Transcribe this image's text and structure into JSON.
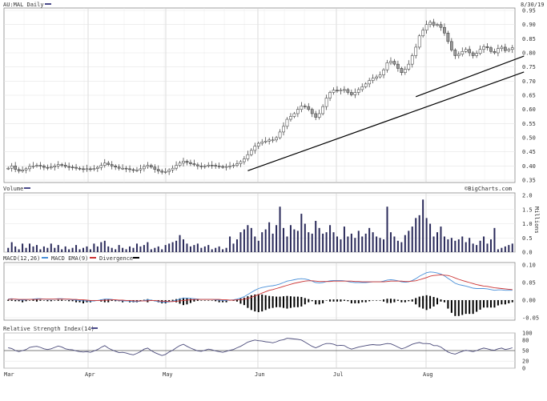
{
  "chart_data": [
    {
      "type": "candlestick",
      "title": "AU:MAL Daily",
      "date_label": "8/30/19",
      "ylim": [
        0.35,
        0.95
      ],
      "yticks": [
        "0.95",
        "0.90",
        "0.85",
        "0.80",
        "0.75",
        "0.70",
        "0.65",
        "0.60",
        "0.55",
        "0.50",
        "0.45",
        "0.40",
        "0.35"
      ],
      "months": [
        "Mar",
        "Apr",
        "May",
        "Jun",
        "Jul",
        "Aug"
      ],
      "close": [
        0.392,
        0.4,
        0.388,
        0.382,
        0.386,
        0.39,
        0.398,
        0.4,
        0.402,
        0.4,
        0.395,
        0.393,
        0.396,
        0.4,
        0.405,
        0.403,
        0.398,
        0.396,
        0.395,
        0.392,
        0.39,
        0.389,
        0.39,
        0.388,
        0.391,
        0.395,
        0.402,
        0.41,
        0.405,
        0.4,
        0.396,
        0.392,
        0.392,
        0.39,
        0.387,
        0.384,
        0.386,
        0.39,
        0.398,
        0.402,
        0.396,
        0.388,
        0.382,
        0.378,
        0.38,
        0.386,
        0.392,
        0.402,
        0.41,
        0.417,
        0.412,
        0.408,
        0.404,
        0.4,
        0.398,
        0.4,
        0.403,
        0.402,
        0.4,
        0.398,
        0.396,
        0.398,
        0.4,
        0.402,
        0.408,
        0.415,
        0.425,
        0.44,
        0.455,
        0.47,
        0.48,
        0.485,
        0.488,
        0.492,
        0.492,
        0.5,
        0.52,
        0.54,
        0.565,
        0.575,
        0.585,
        0.6,
        0.612,
        0.61,
        0.6,
        0.585,
        0.572,
        0.585,
        0.61,
        0.64,
        0.66,
        0.668,
        0.665,
        0.668,
        0.67,
        0.66,
        0.652,
        0.66,
        0.67,
        0.68,
        0.69,
        0.702,
        0.71,
        0.715,
        0.722,
        0.74,
        0.765,
        0.77,
        0.76,
        0.745,
        0.73,
        0.742,
        0.76,
        0.79,
        0.82,
        0.86,
        0.88,
        0.9,
        0.908,
        0.898,
        0.9,
        0.89,
        0.87,
        0.84,
        0.81,
        0.79,
        0.795,
        0.805,
        0.812,
        0.8,
        0.79,
        0.798,
        0.812,
        0.822,
        0.818,
        0.805,
        0.8,
        0.815,
        0.82,
        0.808,
        0.812,
        0.818
      ],
      "volume_ylim": [
        0,
        2.0
      ],
      "volume_ticks": [
        "2.0",
        "1.5",
        "1.0",
        "0.5",
        "0.0"
      ],
      "volume_unit": "Millions",
      "volume": [
        0.15,
        0.35,
        0.2,
        0.1,
        0.3,
        0.15,
        0.3,
        0.2,
        0.25,
        0.1,
        0.2,
        0.15,
        0.3,
        0.15,
        0.25,
        0.1,
        0.2,
        0.1,
        0.15,
        0.25,
        0.1,
        0.15,
        0.2,
        0.1,
        0.3,
        0.2,
        0.35,
        0.4,
        0.2,
        0.15,
        0.1,
        0.25,
        0.15,
        0.1,
        0.2,
        0.15,
        0.3,
        0.2,
        0.25,
        0.35,
        0.1,
        0.15,
        0.2,
        0.1,
        0.25,
        0.3,
        0.35,
        0.4,
        0.6,
        0.45,
        0.3,
        0.2,
        0.25,
        0.3,
        0.15,
        0.2,
        0.25,
        0.1,
        0.15,
        0.2,
        0.1,
        0.15,
        0.55,
        0.3,
        0.45,
        0.7,
        0.8,
        0.95,
        0.85,
        0.55,
        0.4,
        0.7,
        0.8,
        1.05,
        0.65,
        0.95,
        1.6,
        0.85,
        0.55,
        0.95,
        0.8,
        0.75,
        1.35,
        1.0,
        0.7,
        0.65,
        1.1,
        0.85,
        0.65,
        0.7,
        0.95,
        0.7,
        0.55,
        0.45,
        0.9,
        0.55,
        0.65,
        0.5,
        0.75,
        0.55,
        0.65,
        0.85,
        0.7,
        0.55,
        0.5,
        0.45,
        1.6,
        0.7,
        0.55,
        0.4,
        0.35,
        0.6,
        0.75,
        0.9,
        1.2,
        1.3,
        1.85,
        1.2,
        1.0,
        0.55,
        0.7,
        0.9,
        0.55,
        0.45,
        0.5,
        0.4,
        0.45,
        0.55,
        0.35,
        0.5,
        0.3,
        0.25,
        0.4,
        0.55,
        0.3,
        0.45,
        0.85,
        0.1,
        0.15,
        0.2,
        0.25,
        0.3
      ],
      "macd_ylim": [
        -0.05,
        0.1
      ],
      "macd_ticks": [
        "0.10",
        "0.05",
        "0.00",
        "-0.05"
      ],
      "rsi_ylim": [
        0,
        100
      ],
      "rsi_ticks": [
        "100",
        "80",
        "50",
        "20",
        "0"
      ],
      "rsi_level": 50,
      "rsi_series": [
        58,
        56,
        50,
        47,
        50,
        53,
        59,
        61,
        62,
        59,
        55,
        53,
        55,
        59,
        63,
        60,
        55,
        53,
        52,
        49,
        47,
        46,
        47,
        45,
        49,
        53,
        59,
        64,
        57,
        52,
        48,
        44,
        45,
        43,
        40,
        38,
        42,
        47,
        54,
        57,
        50,
        44,
        40,
        36,
        39,
        46,
        51,
        58,
        64,
        68,
        62,
        57,
        53,
        49,
        48,
        51,
        54,
        52,
        49,
        47,
        45,
        48,
        51,
        53,
        58,
        62,
        68,
        74,
        77,
        80,
        78,
        77,
        75,
        74,
        72,
        75,
        79,
        81,
        85,
        84,
        83,
        82,
        80,
        74,
        68,
        62,
        58,
        62,
        67,
        70,
        70,
        68,
        64,
        65,
        64,
        58,
        54,
        57,
        60,
        62,
        64,
        66,
        67,
        66,
        66,
        68,
        70,
        69,
        65,
        60,
        55,
        58,
        63,
        68,
        71,
        73,
        70,
        70,
        69,
        64,
        64,
        60,
        53,
        46,
        42,
        40,
        44,
        48,
        51,
        49,
        47,
        50,
        54,
        57,
        55,
        52,
        51,
        55,
        57,
        53,
        55,
        58
      ],
      "macd_series": [
        0.003,
        0.004,
        0.002,
        0.001,
        0.0,
        0.001,
        0.002,
        0.003,
        0.004,
        0.004,
        0.003,
        0.002,
        0.002,
        0.003,
        0.004,
        0.004,
        0.003,
        0.002,
        0.001,
        0.0,
        -0.001,
        -0.002,
        -0.002,
        -0.003,
        -0.002,
        -0.001,
        0.001,
        0.003,
        0.003,
        0.002,
        0.0,
        -0.001,
        -0.002,
        -0.002,
        -0.003,
        -0.004,
        -0.004,
        -0.003,
        -0.001,
        0.001,
        0.0,
        -0.002,
        -0.004,
        -0.006,
        -0.006,
        -0.005,
        -0.003,
        0.0,
        0.003,
        0.006,
        0.006,
        0.005,
        0.004,
        0.003,
        0.002,
        0.002,
        0.002,
        0.002,
        0.001,
        0.0,
        -0.001,
        -0.001,
        0.0,
        0.001,
        0.003,
        0.006,
        0.01,
        0.016,
        0.022,
        0.028,
        0.033,
        0.036,
        0.038,
        0.04,
        0.041,
        0.043,
        0.046,
        0.05,
        0.054,
        0.056,
        0.058,
        0.06,
        0.061,
        0.06,
        0.058,
        0.054,
        0.05,
        0.049,
        0.05,
        0.053,
        0.055,
        0.056,
        0.056,
        0.056,
        0.055,
        0.053,
        0.051,
        0.05,
        0.05,
        0.05,
        0.05,
        0.051,
        0.052,
        0.052,
        0.052,
        0.054,
        0.057,
        0.058,
        0.057,
        0.055,
        0.052,
        0.051,
        0.052,
        0.056,
        0.061,
        0.068,
        0.073,
        0.078,
        0.08,
        0.079,
        0.077,
        0.074,
        0.069,
        0.062,
        0.055,
        0.048,
        0.044,
        0.042,
        0.04,
        0.037,
        0.034,
        0.033,
        0.033,
        0.033,
        0.032,
        0.03,
        0.028,
        0.029,
        0.029,
        0.028,
        0.028,
        0.028
      ],
      "signal_series": [
        0.002,
        0.003,
        0.003,
        0.002,
        0.002,
        0.002,
        0.002,
        0.002,
        0.002,
        0.003,
        0.003,
        0.003,
        0.003,
        0.003,
        0.003,
        0.003,
        0.003,
        0.003,
        0.002,
        0.002,
        0.001,
        0.001,
        0.0,
        -0.001,
        -0.001,
        -0.001,
        -0.001,
        0.0,
        0.0,
        0.001,
        0.001,
        0.0,
        0.0,
        -0.001,
        -0.001,
        -0.002,
        -0.002,
        -0.002,
        -0.002,
        -0.002,
        -0.001,
        -0.001,
        -0.002,
        -0.003,
        -0.003,
        -0.004,
        -0.004,
        -0.003,
        -0.002,
        -0.001,
        0.0,
        0.001,
        0.002,
        0.002,
        0.002,
        0.002,
        0.002,
        0.002,
        0.002,
        0.002,
        0.001,
        0.001,
        0.0,
        0.0,
        0.001,
        0.001,
        0.003,
        0.005,
        0.008,
        0.012,
        0.016,
        0.02,
        0.024,
        0.028,
        0.03,
        0.033,
        0.036,
        0.039,
        0.042,
        0.045,
        0.048,
        0.05,
        0.052,
        0.054,
        0.055,
        0.055,
        0.054,
        0.053,
        0.053,
        0.053,
        0.053,
        0.054,
        0.054,
        0.054,
        0.054,
        0.054,
        0.054,
        0.053,
        0.053,
        0.052,
        0.052,
        0.052,
        0.052,
        0.052,
        0.052,
        0.052,
        0.053,
        0.054,
        0.054,
        0.054,
        0.054,
        0.053,
        0.053,
        0.054,
        0.055,
        0.058,
        0.061,
        0.064,
        0.068,
        0.07,
        0.071,
        0.072,
        0.071,
        0.07,
        0.067,
        0.063,
        0.059,
        0.056,
        0.053,
        0.05,
        0.047,
        0.044,
        0.042,
        0.04,
        0.039,
        0.037,
        0.035,
        0.034,
        0.033,
        0.032,
        0.031,
        0.03
      ]
    }
  ],
  "labels": {
    "price_title": "AU:MAL Daily",
    "date": "8/30/19",
    "volume_title": "Volume",
    "watermark": "©BigCharts.com",
    "volume_unit": "Millions",
    "macd_title": "MACD(12,26)",
    "macd_ema": "MACD EMA(9)",
    "divergence": "Divergence",
    "rsi_title": "Relative Strength Index(14)"
  },
  "colors": {
    "up": "#ffffff",
    "down": "#999999",
    "volume": "#2a2a5a",
    "macd": "#4a90d9",
    "signal": "#cc3333",
    "divergence": "#000000",
    "rsi": "#4a4a7a",
    "legend_swatch": "#4a4a8a"
  }
}
